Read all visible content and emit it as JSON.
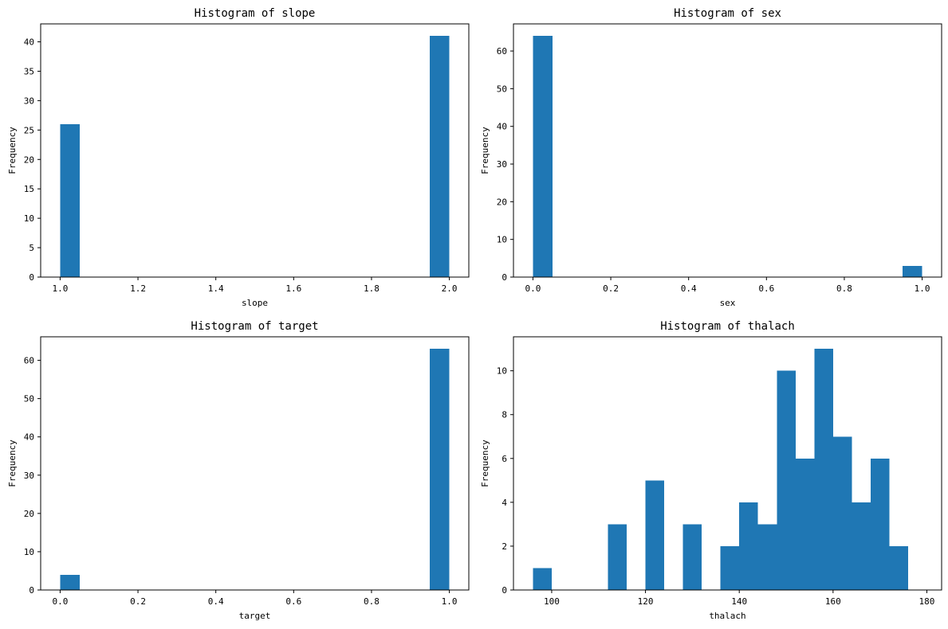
{
  "chart_data": [
    {
      "type": "bar",
      "title": "Histogram of slope",
      "xlabel": "slope",
      "ylabel": "Frequency",
      "xlim": [
        0.95,
        2.05
      ],
      "ylim": [
        0,
        43.05
      ],
      "xticks": [
        1.0,
        1.2,
        1.4,
        1.6,
        1.8,
        2.0
      ],
      "xtick_labels": [
        "1.0",
        "1.2",
        "1.4",
        "1.6",
        "1.8",
        "2.0"
      ],
      "yticks": [
        0,
        5,
        10,
        15,
        20,
        25,
        30,
        35,
        40
      ],
      "ytick_labels": [
        "0",
        "5",
        "10",
        "15",
        "20",
        "25",
        "30",
        "35",
        "40"
      ],
      "bins": [
        [
          1.0,
          1.05,
          26
        ],
        [
          1.95,
          2.0,
          41
        ]
      ],
      "color": "#1f77b4"
    },
    {
      "type": "bar",
      "title": "Histogram of sex",
      "xlabel": "sex",
      "ylabel": "Frequency",
      "xlim": [
        -0.05,
        1.05
      ],
      "ylim": [
        0,
        67.2
      ],
      "xticks": [
        0.0,
        0.2,
        0.4,
        0.6,
        0.8,
        1.0
      ],
      "xtick_labels": [
        "0.0",
        "0.2",
        "0.4",
        "0.6",
        "0.8",
        "1.0"
      ],
      "yticks": [
        0,
        10,
        20,
        30,
        40,
        50,
        60
      ],
      "ytick_labels": [
        "0",
        "10",
        "20",
        "30",
        "40",
        "50",
        "60"
      ],
      "bins": [
        [
          0.0,
          0.05,
          64
        ],
        [
          0.95,
          1.0,
          3
        ]
      ],
      "color": "#1f77b4"
    },
    {
      "type": "bar",
      "title": "Histogram of target",
      "xlabel": "target",
      "ylabel": "Frequency",
      "xlim": [
        -0.05,
        1.05
      ],
      "ylim": [
        0,
        66.15
      ],
      "xticks": [
        0.0,
        0.2,
        0.4,
        0.6,
        0.8,
        1.0
      ],
      "xtick_labels": [
        "0.0",
        "0.2",
        "0.4",
        "0.6",
        "0.8",
        "1.0"
      ],
      "yticks": [
        0,
        10,
        20,
        30,
        40,
        50,
        60
      ],
      "ytick_labels": [
        "0",
        "10",
        "20",
        "30",
        "40",
        "50",
        "60"
      ],
      "bins": [
        [
          0.0,
          0.05,
          4
        ],
        [
          0.95,
          1.0,
          63
        ]
      ],
      "color": "#1f77b4"
    },
    {
      "type": "bar",
      "title": "Histogram of thalach",
      "xlabel": "thalach",
      "ylabel": "Frequency",
      "xlim": [
        91.85,
        183.15
      ],
      "ylim": [
        0,
        11.55
      ],
      "xticks": [
        100,
        120,
        140,
        160,
        180
      ],
      "xtick_labels": [
        "100",
        "120",
        "140",
        "160",
        "180"
      ],
      "yticks": [
        0,
        2,
        4,
        6,
        8,
        10
      ],
      "ytick_labels": [
        "0",
        "2",
        "4",
        "6",
        "8",
        "10"
      ],
      "bins": [
        [
          96.0,
          100.0,
          1
        ],
        [
          112.0,
          116.0,
          3
        ],
        [
          120.0,
          124.0,
          5
        ],
        [
          128.0,
          132.0,
          3
        ],
        [
          136.0,
          140.0,
          2
        ],
        [
          140.0,
          144.0,
          4
        ],
        [
          144.0,
          148.0,
          3
        ],
        [
          148.0,
          152.0,
          10
        ],
        [
          152.0,
          156.0,
          6
        ],
        [
          156.0,
          160.0,
          11
        ],
        [
          160.0,
          164.0,
          7
        ],
        [
          164.0,
          168.0,
          4
        ],
        [
          168.0,
          172.0,
          6
        ],
        [
          172.0,
          176.0,
          2
        ]
      ],
      "color": "#1f77b4"
    }
  ]
}
